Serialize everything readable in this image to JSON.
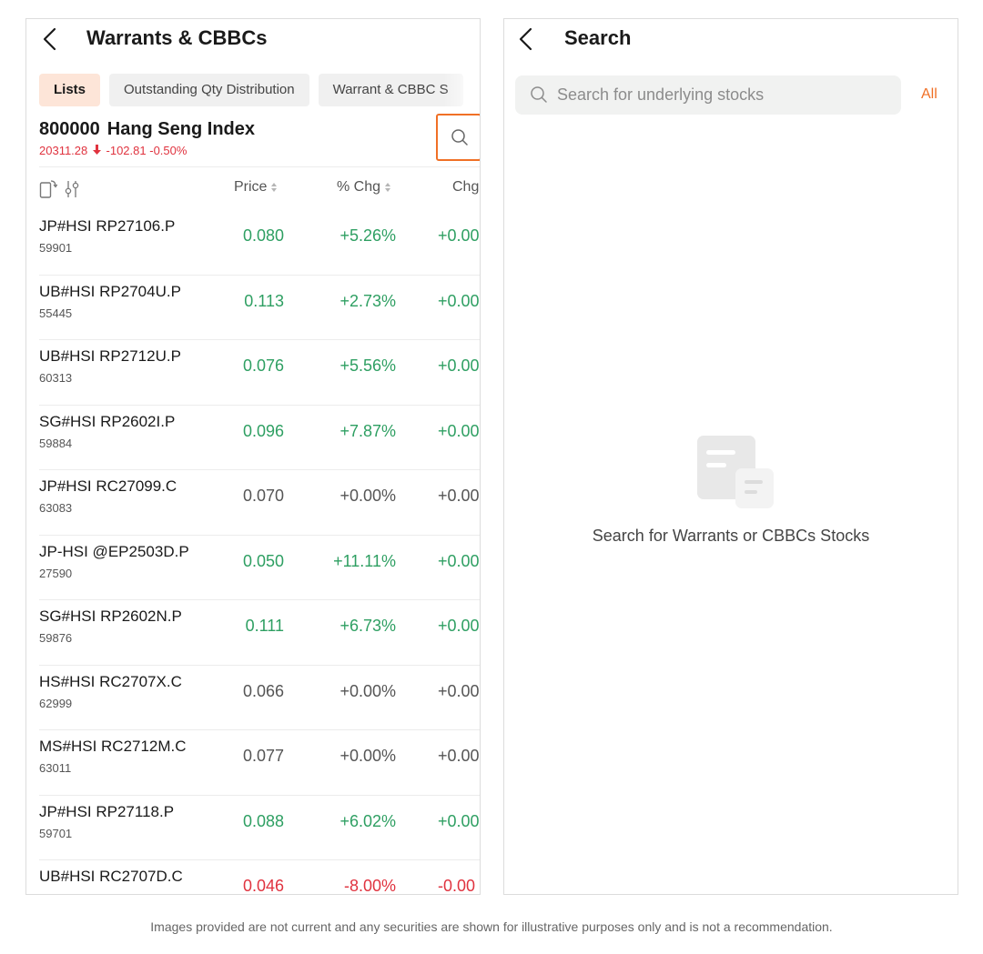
{
  "left": {
    "header": {
      "title": "Warrants & CBBCs"
    },
    "tabs": [
      "Lists",
      "Outstanding Qty Distribution",
      "Warrant & CBBC S"
    ],
    "index": {
      "code": "800000",
      "name": "Hang Seng Index",
      "last": "20311.28",
      "change": "-102.81",
      "pct": "-0.50%"
    },
    "columns": {
      "price": "Price",
      "pct": "% Chg",
      "chg": "Chg"
    },
    "rows": [
      {
        "name": "JP#HSI  RP27106.P",
        "code": "59901",
        "price": "0.080",
        "pct": "+5.26%",
        "chg": "+0.00",
        "trend": "up"
      },
      {
        "name": "UB#HSI  RP2704U.P",
        "code": "55445",
        "price": "0.113",
        "pct": "+2.73%",
        "chg": "+0.00",
        "trend": "up"
      },
      {
        "name": "UB#HSI  RP2712U.P",
        "code": "60313",
        "price": "0.076",
        "pct": "+5.56%",
        "chg": "+0.00",
        "trend": "up"
      },
      {
        "name": "SG#HSI  RP2602I.P",
        "code": "59884",
        "price": "0.096",
        "pct": "+7.87%",
        "chg": "+0.00",
        "trend": "up"
      },
      {
        "name": "JP#HSI  RC27099.C",
        "code": "63083",
        "price": "0.070",
        "pct": "+0.00%",
        "chg": "+0.00",
        "trend": "flat"
      },
      {
        "name": "JP-HSI @EP2503D.P",
        "code": "27590",
        "price": "0.050",
        "pct": "+11.11%",
        "chg": "+0.00",
        "trend": "up"
      },
      {
        "name": "SG#HSI  RP2602N.P",
        "code": "59876",
        "price": "0.111",
        "pct": "+6.73%",
        "chg": "+0.00",
        "trend": "up"
      },
      {
        "name": "HS#HSI  RC2707X.C",
        "code": "62999",
        "price": "0.066",
        "pct": "+0.00%",
        "chg": "+0.00",
        "trend": "flat"
      },
      {
        "name": "MS#HSI  RC2712M.C",
        "code": "63011",
        "price": "0.077",
        "pct": "+0.00%",
        "chg": "+0.00",
        "trend": "flat"
      },
      {
        "name": "JP#HSI  RP27118.P",
        "code": "59701",
        "price": "0.088",
        "pct": "+6.02%",
        "chg": "+0.00",
        "trend": "up"
      },
      {
        "name": "UB#HSI  RC2707D.C",
        "code": "",
        "price": "0.046",
        "pct": "-8.00%",
        "chg": "-0.00",
        "trend": "down"
      }
    ]
  },
  "right": {
    "header": {
      "title": "Search"
    },
    "search": {
      "placeholder": "Search for underlying stocks"
    },
    "all_label": "All",
    "empty_text": "Search for Warrants or CBBCs Stocks"
  },
  "disclaimer": "Images provided are not current and any securities are shown for illustrative purposes only and is not a recommendation.",
  "colors": {
    "accent": "#f07026",
    "up": "#2e9f62",
    "down": "#e0333f",
    "tab_active_bg": "#fde5d8"
  },
  "icons": [
    "back-arrow-icon",
    "search-icon",
    "rotate-screen-icon",
    "filter-sliders-icon",
    "sort-icon",
    "empty-document-icon"
  ]
}
